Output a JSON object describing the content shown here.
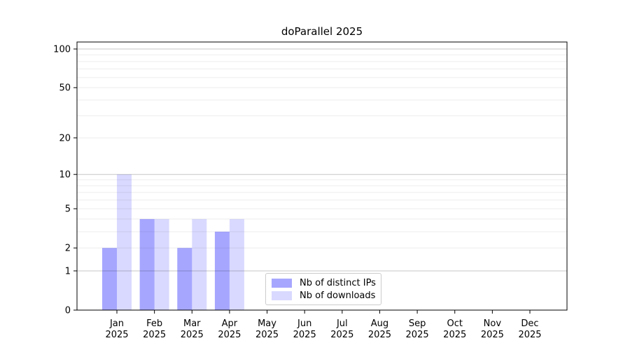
{
  "chart_data": {
    "type": "bar",
    "title": "doParallel 2025",
    "categories": [
      "Jan",
      "Feb",
      "Mar",
      "Apr",
      "May",
      "Jun",
      "Jul",
      "Aug",
      "Sep",
      "Oct",
      "Nov",
      "Dec"
    ],
    "year_label": "2025",
    "series": [
      {
        "name": "Nb of distinct IPs",
        "color": "rgba(0,0,255,0.35)",
        "values": [
          2,
          4,
          2,
          3,
          0,
          0,
          0,
          0,
          0,
          0,
          0,
          0
        ]
      },
      {
        "name": "Nb of downloads",
        "color": "rgba(0,0,255,0.15)",
        "values": [
          10,
          4,
          4,
          4,
          0,
          0,
          0,
          0,
          0,
          0,
          0,
          0
        ]
      }
    ],
    "y_scale": "log1p",
    "ylim": [
      0,
      113
    ],
    "y_ticks": [
      100,
      50,
      20,
      10,
      5,
      2,
      1,
      0
    ],
    "y_major_gridlines": [
      1,
      10,
      100
    ],
    "y_minor_gridlines": [
      2,
      3,
      4,
      5,
      6,
      7,
      8,
      9,
      20,
      30,
      40,
      50,
      60,
      70,
      80,
      90
    ],
    "grid": true,
    "legend_position": "lower center",
    "xlabel": "",
    "ylabel": ""
  },
  "colors": {
    "bar_distinct_ips": "rgba(0,0,255,0.35)",
    "bar_downloads": "rgba(0,0,255,0.15)",
    "grid_major": "rgba(0,0,0,0.22)",
    "grid_minor": "rgba(0,0,0,0.07)",
    "spine": "#000000",
    "text": "#000000",
    "legend_border": "#cccccc",
    "background": "#ffffff"
  }
}
